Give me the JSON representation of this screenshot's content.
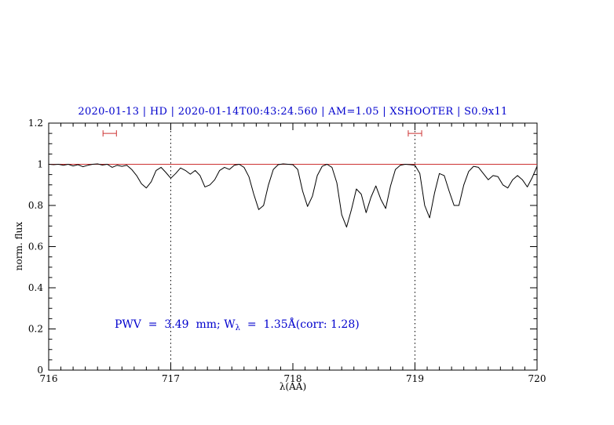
{
  "header": {
    "title": "2020-01-13 | HD | 2020-01-14T00:43:24.560 | AM=1.05 | XSHOOTER | S0.9x11"
  },
  "annotation": {
    "prefix": "PWV  =  3.49  mm; W",
    "sub": "λ",
    "suffix": "  =  1.35Å(corr: 1.28)"
  },
  "chart_data": {
    "type": "line",
    "title": "2020-01-13 | HD | 2020-01-14T00:43:24.560 | AM=1.05 | XSHOOTER | S0.9x11",
    "xlabel": "λ(AA)",
    "ylabel": "norm. flux",
    "xlim": [
      716,
      720
    ],
    "ylim": [
      0,
      1.2
    ],
    "x_ticks": [
      716,
      717,
      718,
      719,
      720
    ],
    "x_tick_labels": [
      "716",
      "717",
      "718",
      "719",
      "720"
    ],
    "y_ticks": [
      0,
      0.2,
      0.4,
      0.6,
      0.8,
      1,
      1.2
    ],
    "y_tick_labels": [
      "0",
      "0.2",
      "0.4",
      "0.6",
      "0.8",
      "1",
      "1.2"
    ],
    "x_minor_step": 0.1,
    "y_minor_step": 0.05,
    "grid_vlines": [
      717,
      719
    ],
    "continuum_line_y": 1.0,
    "range_markers": [
      {
        "x_center": 716.5,
        "half_width": 0.055,
        "y": 1.15
      },
      {
        "x_center": 719.0,
        "half_width": 0.055,
        "y": 1.15
      }
    ],
    "annotation_anchor": {
      "x": 716.54,
      "y": 0.2
    },
    "colors": {
      "title": "#0000cd",
      "annotation": "#0000cd",
      "continuum": "#cd3333",
      "markers": "#cd3333",
      "spectrum": "#000000",
      "gridline": "#000000"
    },
    "series": [
      {
        "name": "spectrum",
        "color": "#000000",
        "x": [
          716.0,
          716.04,
          716.08,
          716.12,
          716.16,
          716.2,
          716.24,
          716.28,
          716.32,
          716.36,
          716.4,
          716.44,
          716.48,
          716.52,
          716.56,
          716.6,
          716.64,
          716.68,
          716.72,
          716.76,
          716.8,
          716.84,
          716.88,
          716.92,
          716.96,
          717.0,
          717.04,
          717.08,
          717.12,
          717.16,
          717.2,
          717.24,
          717.28,
          717.32,
          717.36,
          717.4,
          717.44,
          717.48,
          717.52,
          717.56,
          717.6,
          717.64,
          717.68,
          717.72,
          717.76,
          717.8,
          717.84,
          717.88,
          717.92,
          717.96,
          718.0,
          718.04,
          718.08,
          718.12,
          718.16,
          718.2,
          718.24,
          718.28,
          718.32,
          718.36,
          718.4,
          718.44,
          718.48,
          718.52,
          718.56,
          718.6,
          718.64,
          718.68,
          718.72,
          718.76,
          718.8,
          718.84,
          718.88,
          718.92,
          718.96,
          719.0,
          719.04,
          719.08,
          719.12,
          719.16,
          719.2,
          719.24,
          719.28,
          719.32,
          719.36,
          719.4,
          719.44,
          719.48,
          719.52,
          719.56,
          719.6,
          719.64,
          719.68,
          719.72,
          719.76,
          719.8,
          719.84,
          719.88,
          719.92,
          719.96,
          720.0
        ],
        "y": [
          1.0,
          0.998,
          1.0,
          0.995,
          1.0,
          0.992,
          0.998,
          0.988,
          0.995,
          1.0,
          1.002,
          0.996,
          1.0,
          0.985,
          0.995,
          0.99,
          0.995,
          0.975,
          0.945,
          0.905,
          0.885,
          0.915,
          0.97,
          0.985,
          0.96,
          0.932,
          0.955,
          0.982,
          0.97,
          0.952,
          0.97,
          0.945,
          0.89,
          0.9,
          0.925,
          0.97,
          0.985,
          0.975,
          0.995,
          1.0,
          0.985,
          0.94,
          0.855,
          0.78,
          0.8,
          0.9,
          0.975,
          0.998,
          1.002,
          1.0,
          0.998,
          0.975,
          0.87,
          0.795,
          0.845,
          0.945,
          0.99,
          1.0,
          0.985,
          0.91,
          0.755,
          0.695,
          0.78,
          0.88,
          0.855,
          0.765,
          0.84,
          0.895,
          0.83,
          0.785,
          0.895,
          0.975,
          0.995,
          1.0,
          0.998,
          0.995,
          0.955,
          0.8,
          0.74,
          0.86,
          0.955,
          0.945,
          0.87,
          0.8,
          0.8,
          0.9,
          0.965,
          0.99,
          0.985,
          0.955,
          0.925,
          0.945,
          0.94,
          0.9,
          0.885,
          0.925,
          0.945,
          0.925,
          0.89,
          0.935,
          0.99
        ]
      }
    ]
  }
}
